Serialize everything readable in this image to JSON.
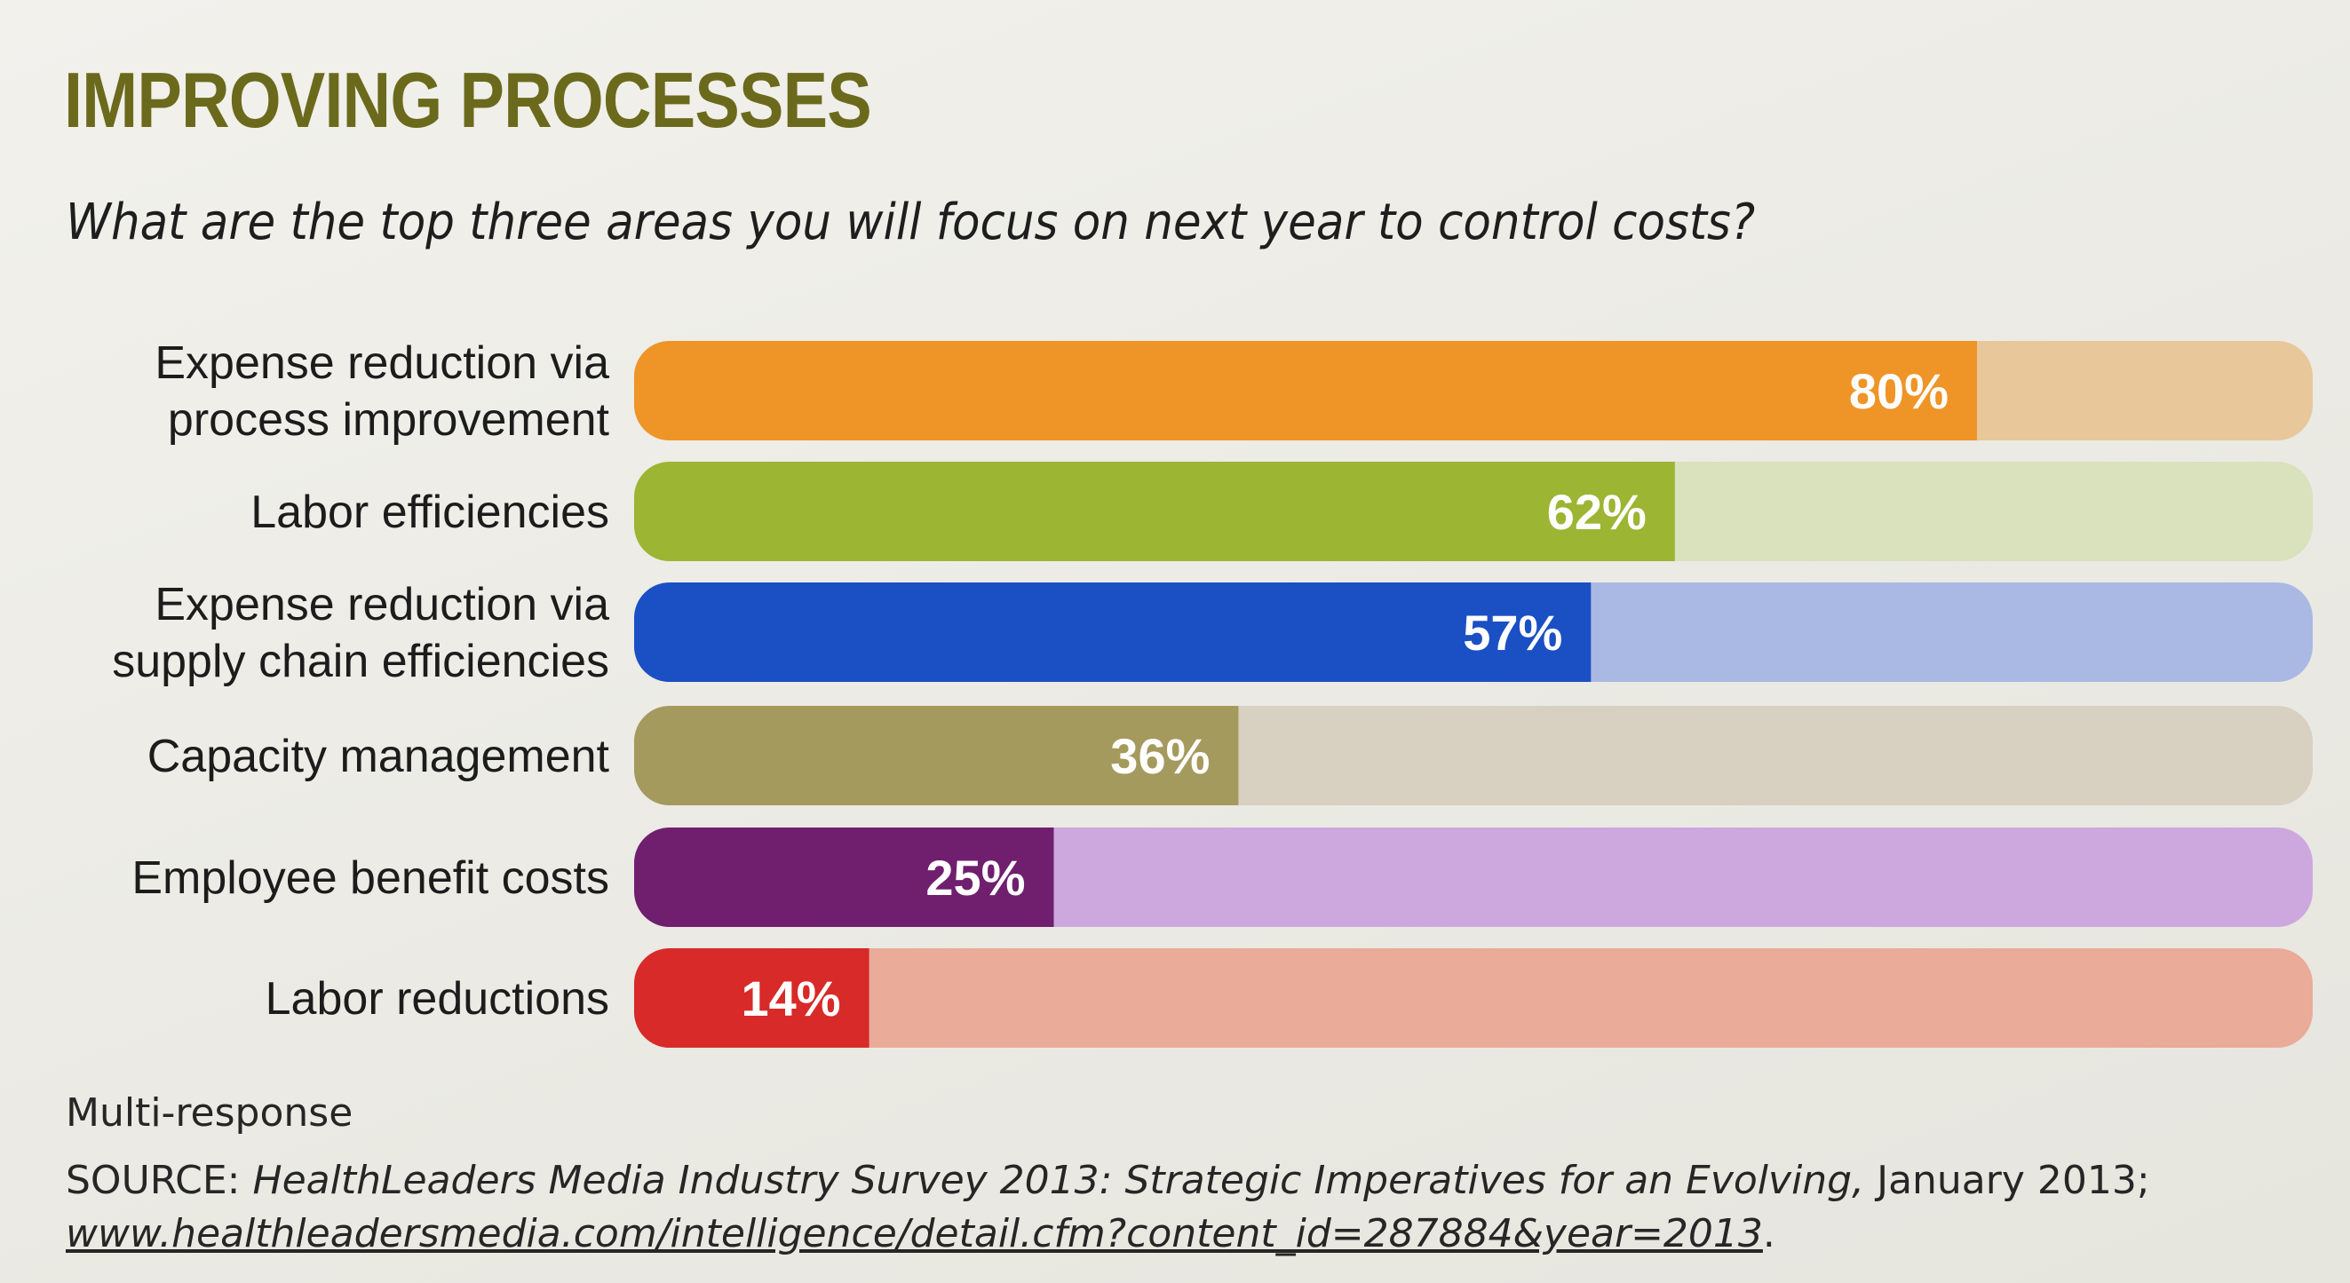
{
  "header": {
    "title": "IMPROVING PROCESSES",
    "question": "What are the top three areas you will focus on next year to control costs?"
  },
  "chart_data": {
    "type": "bar",
    "orientation": "horizontal",
    "title": "IMPROVING PROCESSES",
    "subtitle": "What are the top three areas you will focus on next year to control costs?",
    "xlim": [
      0,
      100
    ],
    "unit": "%",
    "categories": [
      [
        "Expense reduction via",
        "process improvement"
      ],
      [
        "Labor efficiencies"
      ],
      [
        "Expense reduction via",
        "supply chain efficiencies"
      ],
      [
        "Capacity management"
      ],
      [
        "Employee benefit costs"
      ],
      [
        "Labor reductions"
      ]
    ],
    "values": [
      80,
      62,
      57,
      36,
      25,
      14
    ],
    "value_labels": [
      "80%",
      "62%",
      "57%",
      "36%",
      "25%",
      "14%"
    ],
    "colors": [
      "#ef9426",
      "#9cb532",
      "#1b4fc4",
      "#a59a5e",
      "#6f1f6e",
      "#d82a28"
    ],
    "track_colors": [
      "#e8c79a",
      "#d9e1bd",
      "#a9b9e3",
      "#d8d0c0",
      "#cda8df",
      "#eaab98"
    ]
  },
  "footer": {
    "note": "Multi-response",
    "source_prefix": "SOURCE: ",
    "source_title": "HealthLeaders Media Industry Survey 2013: Strategic Imperatives for an Evolving,",
    "source_date": " January 2013;",
    "source_url": "www.healthleadersmedia.com/intelligence/detail.cfm?content_id=287884&year=2013",
    "source_end": "."
  }
}
